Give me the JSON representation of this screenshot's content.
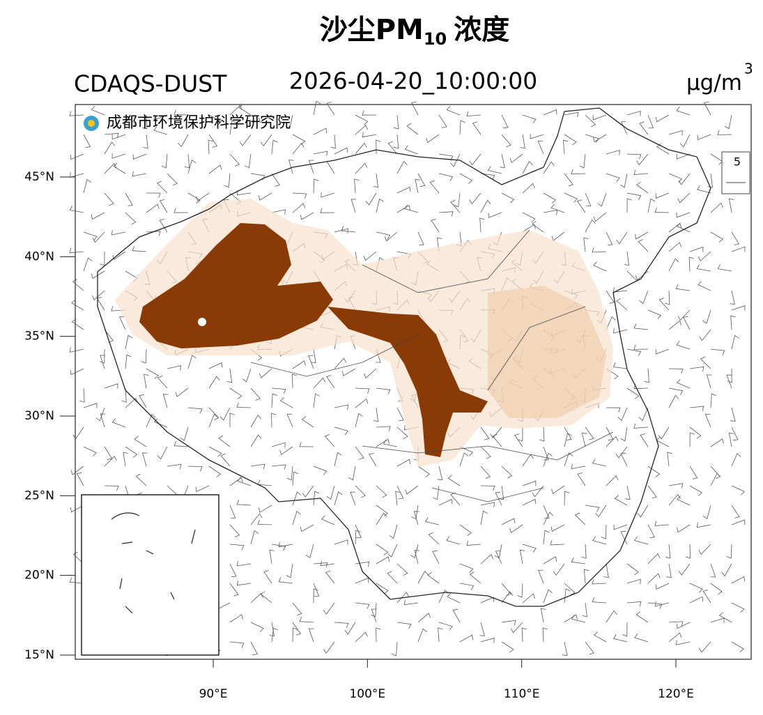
{
  "header": {
    "title_main": "沙尘PM",
    "title_sub": "10",
    "title_end": "浓度",
    "model": "CDAQS-DUST",
    "time": "2026-04-20_10:00:00",
    "unit": "μg/m",
    "unit_sup": "3"
  },
  "logo": {
    "text": "成都市环境保护科学研究院"
  },
  "wind_legend": {
    "label": "5"
  },
  "map": {
    "lat_ticks": [
      {
        "value": 45,
        "label": "45°N"
      },
      {
        "value": 40,
        "label": "40°N"
      },
      {
        "value": 35,
        "label": "35°N"
      },
      {
        "value": 30,
        "label": "30°N"
      },
      {
        "value": 25,
        "label": "25°N"
      },
      {
        "value": 20,
        "label": "20°N"
      },
      {
        "value": 15,
        "label": "15°N"
      }
    ],
    "lon_ticks": [
      {
        "value": 90,
        "label": "90°E"
      },
      {
        "value": 100,
        "label": "100°E"
      },
      {
        "value": 110,
        "label": "110°E"
      },
      {
        "value": 120,
        "label": "120°E"
      }
    ]
  }
}
